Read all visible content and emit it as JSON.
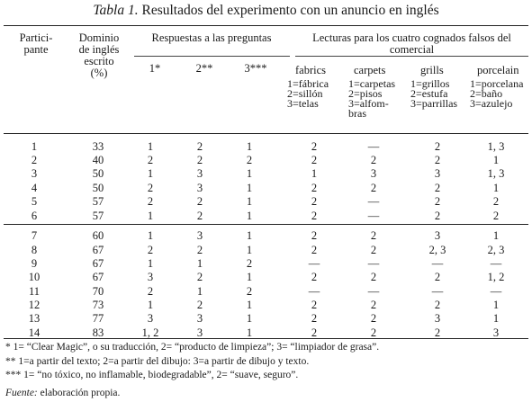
{
  "title": {
    "label": "Tabla 1.",
    "text": "Resultados del experimento con un anuncio en inglés"
  },
  "headers": {
    "participante": "Partici-\npante",
    "dominio": "Dominio\nde inglés\nescrito\n(%)",
    "respuestas": "Respuestas a las preguntas",
    "q1": "1*",
    "q2": "2**",
    "q3": "3***",
    "lecturas": "Lecturas para los cuatro cognados falsos del\ncomercial",
    "fabrics_title": "fabrics",
    "fabrics_defs": "1=fábrica\n2=sillón\n3=telas",
    "carpets_title": "carpets",
    "carpets_defs": "1=carpetas\n2=pisos\n3=alfom-\nbras",
    "grills_title": "grills",
    "grills_defs": "1=grillos\n2=estufa\n3=parrillas",
    "porcelain_title": "porcelain",
    "porcelain_defs": "1=porcelana\n2=baño\n3=azulejo"
  },
  "rows": [
    [
      "1",
      "33",
      "1",
      "2",
      "1",
      "2",
      "—",
      "2",
      "1, 3"
    ],
    [
      "2",
      "40",
      "2",
      "2",
      "2",
      "2",
      "2",
      "2",
      "1"
    ],
    [
      "3",
      "50",
      "1",
      "3",
      "1",
      "1",
      "3",
      "3",
      "1, 3"
    ],
    [
      "4",
      "50",
      "2",
      "3",
      "1",
      "2",
      "2",
      "2",
      "1"
    ],
    [
      "5",
      "57",
      "2",
      "2",
      "1",
      "2",
      "—",
      "2",
      "2"
    ],
    [
      "6",
      "57",
      "1",
      "2",
      "1",
      "2",
      "—",
      "2",
      "2"
    ],
    [
      "7",
      "60",
      "1",
      "3",
      "1",
      "2",
      "2",
      "3",
      "1"
    ],
    [
      "8",
      "67",
      "2",
      "2",
      "1",
      "2",
      "2",
      "2, 3",
      "2, 3"
    ],
    [
      "9",
      "67",
      "1",
      "1",
      "2",
      "—",
      "—",
      "—",
      "—"
    ],
    [
      "10",
      "67",
      "3",
      "2",
      "1",
      "2",
      "2",
      "2",
      "1, 2"
    ],
    [
      "11",
      "70",
      "2",
      "1",
      "2",
      "—",
      "—",
      "—",
      "—"
    ],
    [
      "12",
      "73",
      "1",
      "2",
      "1",
      "2",
      "2",
      "2",
      "1"
    ],
    [
      "13",
      "77",
      "3",
      "3",
      "1",
      "2",
      "2",
      "3",
      "1"
    ],
    [
      "14",
      "83",
      "1, 2",
      "3",
      "1",
      "2",
      "2",
      "2",
      "3"
    ]
  ],
  "footnotes": {
    "f1": "* 1= “Clear Magic”, o su traducción, 2= “producto de limpieza”; 3= “limpiador de grasa”.",
    "f2": "** 1=a partir del texto; 2=a partir del dibujo: 3=a partir de dibujo y texto.",
    "f3": "*** 1= “no tóxico, no inflamable, biodegradable”, 2= “suave, seguro”.",
    "fuente_label": "Fuente:",
    "fuente_text": " elaboración propia."
  }
}
